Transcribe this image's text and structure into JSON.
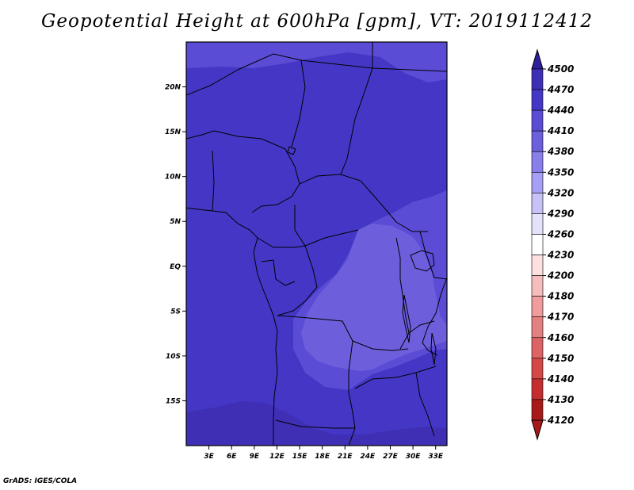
{
  "title": "Geopotential Height at 600hPa [gpm], VT: 2019112412",
  "credit": "GrADS: IGES/COLA",
  "map": {
    "lon_range": [
      0,
      34.5
    ],
    "lat_range": [
      -20,
      25
    ],
    "lat_ticks": [
      {
        "value": 20,
        "label": "20N"
      },
      {
        "value": 15,
        "label": "15N"
      },
      {
        "value": 10,
        "label": "10N"
      },
      {
        "value": 5,
        "label": "5N"
      },
      {
        "value": 0,
        "label": "EQ"
      },
      {
        "value": -5,
        "label": "5S"
      },
      {
        "value": -10,
        "label": "10S"
      },
      {
        "value": -15,
        "label": "15S"
      }
    ],
    "lon_ticks": [
      {
        "value": 3,
        "label": "3E"
      },
      {
        "value": 6,
        "label": "6E"
      },
      {
        "value": 9,
        "label": "9E"
      },
      {
        "value": 12,
        "label": "12E"
      },
      {
        "value": 15,
        "label": "15E"
      },
      {
        "value": 18,
        "label": "18E"
      },
      {
        "value": 21,
        "label": "21E"
      },
      {
        "value": 24,
        "label": "24E"
      },
      {
        "value": 27,
        "label": "27E"
      },
      {
        "value": 30,
        "label": "30E"
      },
      {
        "value": 33,
        "label": "33E"
      }
    ],
    "fields": {
      "h4440": "#4537c6",
      "h4410": "#5a4cd5",
      "h4380": "#6d5fdc",
      "h4470": "#3f2fb4"
    }
  },
  "colorbar": {
    "labels": [
      "4500",
      "4470",
      "4440",
      "4410",
      "4380",
      "4350",
      "4320",
      "4290",
      "4260",
      "4230",
      "4200",
      "4180",
      "4170",
      "4160",
      "4150",
      "4140",
      "4130",
      "4120"
    ],
    "colors": [
      "#2e1f9e",
      "#3f2fb4",
      "#4537c6",
      "#5a4cd5",
      "#6d5fdc",
      "#8a7eea",
      "#a79ff4",
      "#c6c2f6",
      "#e4e2fb",
      "#ffffff",
      "#fde0e0",
      "#f6bdbd",
      "#ee9c9c",
      "#e58080",
      "#dd6464",
      "#d44848",
      "#c42e2e",
      "#a81a1a"
    ]
  }
}
